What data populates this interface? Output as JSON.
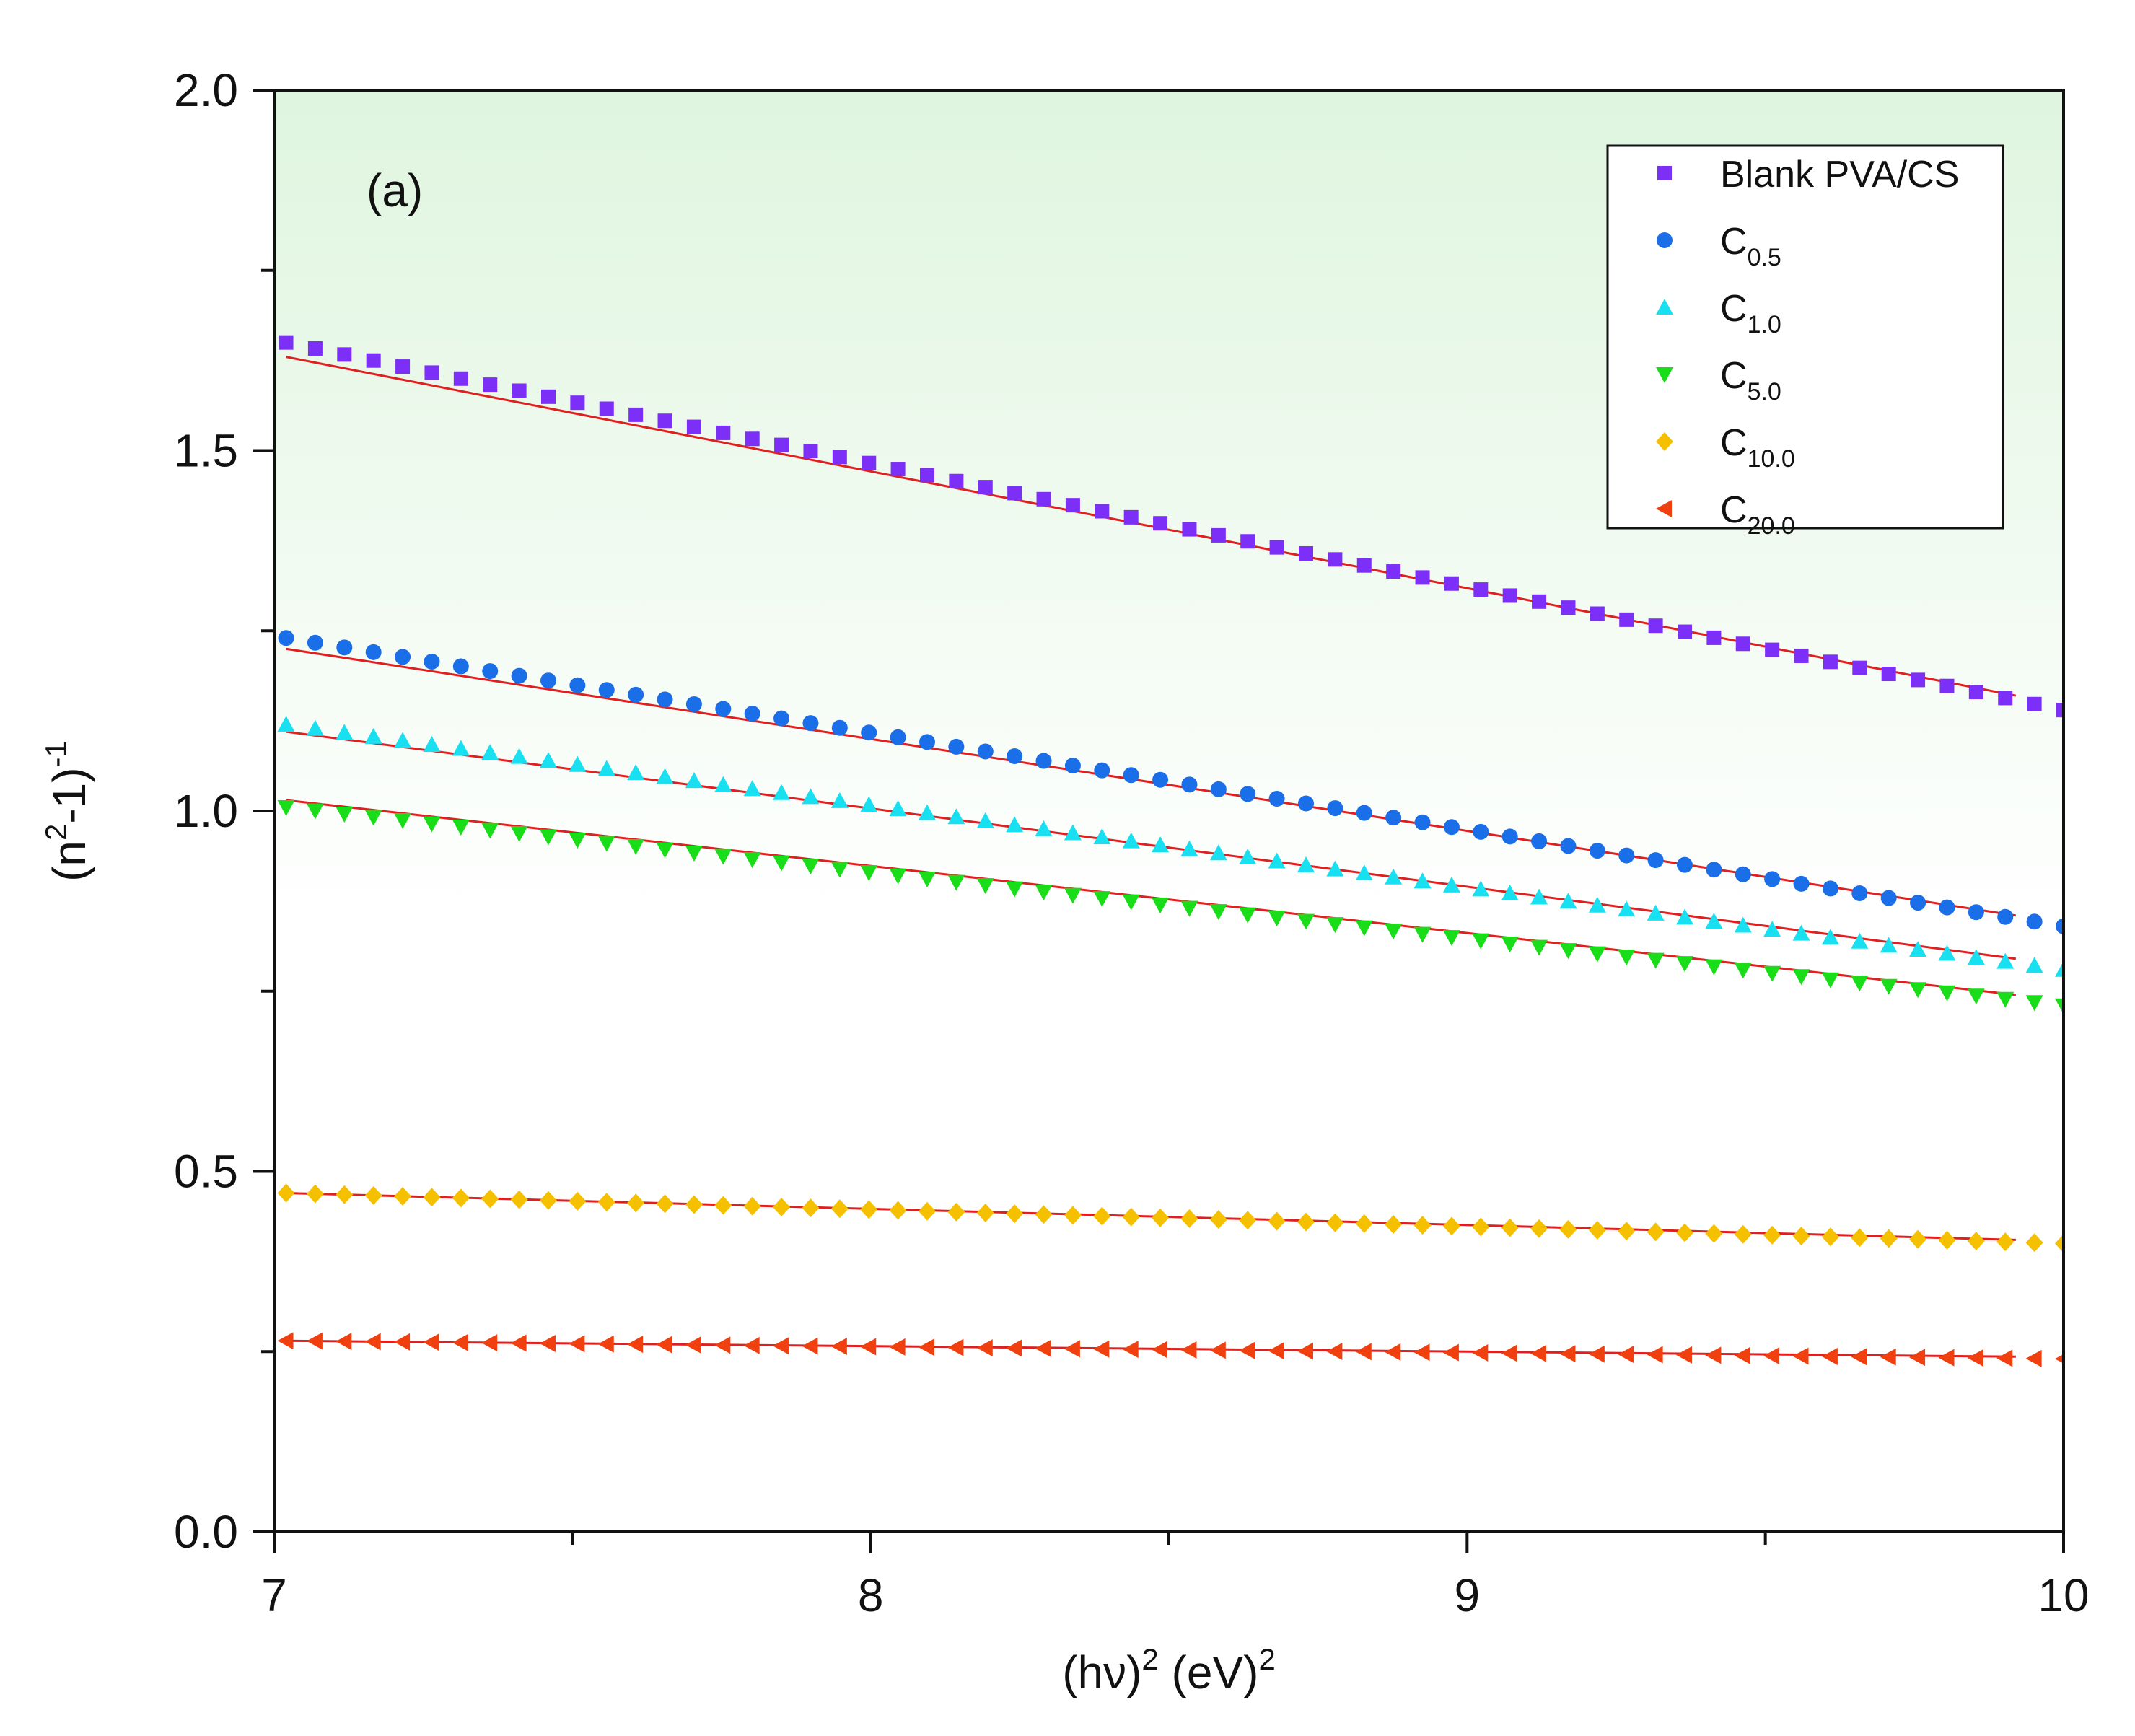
{
  "chart_data": {
    "type": "scatter",
    "panel_label": "(a)",
    "xlabel": {
      "prefix": "(hν)",
      "exp1": "2",
      "middle": " (eV)",
      "exp2": "2"
    },
    "ylabel": {
      "prefix": "(n",
      "exp1": "2",
      "middle": "-1)",
      "exp2": "-1"
    },
    "xlim": [
      7,
      10
    ],
    "ylim": [
      0,
      2
    ],
    "x_major_ticks": [
      7,
      8,
      9,
      10
    ],
    "x_tick_labels": [
      "7",
      "8",
      "9",
      "10"
    ],
    "y_major_ticks": [
      0,
      0.5,
      1,
      1.5,
      2
    ],
    "y_tick_labels": [
      "0.0",
      "0.5",
      "1.0",
      "1.5",
      "2.0"
    ],
    "x_range": [
      7.02,
      10.0
    ],
    "n_points": 62,
    "fit_range": [
      7.02,
      9.92
    ],
    "fit_color": "#e02020",
    "background_gradient": [
      "#dff5df",
      "#ffffff"
    ],
    "legend_position": "top-right",
    "series": [
      {
        "name": "Blank PVA/CS",
        "base": "Blank PVA/CS",
        "sub": "",
        "marker": "square",
        "color": "#7b2ff7",
        "y_start": 1.65,
        "y_end": 1.14,
        "fit_start": 1.63,
        "fit_end": 1.16
      },
      {
        "name": "C0.5",
        "base": "C",
        "sub": "0.5",
        "marker": "circle",
        "color": "#1a6ee8",
        "y_start": 1.24,
        "y_end": 0.84,
        "fit_start": 1.225,
        "fit_end": 0.855
      },
      {
        "name": "C1.0",
        "base": "C",
        "sub": "1.0",
        "marker": "triangle-up",
        "color": "#19e0f0",
        "y_start": 1.12,
        "y_end": 0.78,
        "fit_start": 1.11,
        "fit_end": 0.795
      },
      {
        "name": "C5.0",
        "base": "C",
        "sub": "5.0",
        "marker": "triangle-down",
        "color": "#19dd19",
        "y_start": 1.005,
        "y_end": 0.73,
        "fit_start": 1.015,
        "fit_end": 0.745
      },
      {
        "name": "C10.0",
        "base": "C",
        "sub": "10.0",
        "marker": "diamond",
        "color": "#f5c000",
        "y_start": 0.47,
        "y_end": 0.4,
        "fit_start": 0.47,
        "fit_end": 0.405
      },
      {
        "name": "C20.0",
        "base": "C",
        "sub": "20.0",
        "marker": "triangle-left",
        "color": "#f04010",
        "y_start": 0.265,
        "y_end": 0.24,
        "fit_start": 0.265,
        "fit_end": 0.243
      }
    ]
  }
}
